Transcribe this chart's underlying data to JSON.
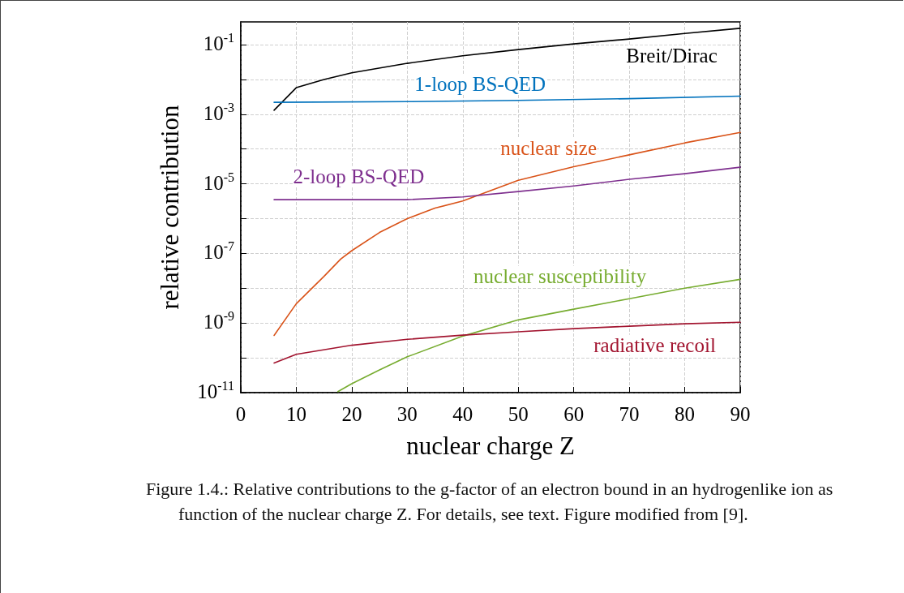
{
  "chart_data": {
    "type": "line",
    "xlabel": "nuclear charge Z",
    "ylabel": "relative contribution",
    "xlim": [
      0,
      90
    ],
    "xticks": [
      0,
      10,
      20,
      30,
      40,
      50,
      60,
      70,
      80,
      90
    ],
    "ylim": [
      1e-11,
      0.45
    ],
    "log": "y",
    "yticks": [
      {
        "value": 1e-11,
        "label": "10$^{-11}$"
      },
      {
        "value": 1e-10,
        "label": null
      },
      {
        "value": 1e-09,
        "label": "10$^{-9}$"
      },
      {
        "value": 1e-08,
        "label": null
      },
      {
        "value": 1e-07,
        "label": "10$^{-7}$"
      },
      {
        "value": 1e-06,
        "label": null
      },
      {
        "value": 1e-05,
        "label": "10$^{-5}$"
      },
      {
        "value": 0.0001,
        "label": null
      },
      {
        "value": 0.001,
        "label": "10$^{-3}$"
      },
      {
        "value": 0.01,
        "label": null
      },
      {
        "value": 0.1,
        "label": "10$^{-1}$"
      }
    ],
    "grid": true,
    "legend": false,
    "marker": "none",
    "line_style": "solid",
    "series": [
      {
        "name": "Breit/Dirac",
        "color": "#000000",
        "x": [
          6,
          10,
          15,
          20,
          30,
          40,
          50,
          60,
          70,
          80,
          90
        ],
        "values": [
          0.0013,
          0.0058,
          0.01,
          0.0155,
          0.029,
          0.048,
          0.072,
          0.105,
          0.145,
          0.21,
          0.295
        ]
      },
      {
        "name": "1-loop BS-QED",
        "color": "#0072bd",
        "x": [
          6,
          30,
          50,
          70,
          90
        ],
        "values": [
          0.0022,
          0.0023,
          0.0025,
          0.0028,
          0.0033
        ]
      },
      {
        "name": "nuclear size",
        "color": "#d95319",
        "x": [
          6,
          10,
          15,
          18,
          20,
          25,
          30,
          35,
          40,
          50,
          60,
          70,
          80,
          90
        ],
        "values": [
          4.4e-10,
          3.6e-09,
          2.2e-08,
          6.9e-08,
          1.2e-07,
          4e-07,
          1e-06,
          2e-06,
          3.2e-06,
          1.26e-05,
          3.1e-05,
          6.8e-05,
          0.00015,
          0.0003
        ]
      },
      {
        "name": "2-loop BS-QED",
        "color": "#7e2f8e",
        "x": [
          6,
          30,
          40,
          50,
          60,
          70,
          80,
          90
        ],
        "values": [
          3.5e-06,
          3.5e-06,
          4.2e-06,
          6e-06,
          8.7e-06,
          1.35e-05,
          1.95e-05,
          3e-05
        ]
      },
      {
        "name": "nuclear susceptibility",
        "color": "#77ac30",
        "x": [
          17.5,
          20,
          25,
          30,
          40,
          50,
          60,
          70,
          80,
          90
        ],
        "values": [
          1.07e-11,
          1.8e-11,
          4.5e-11,
          1.07e-10,
          4.2e-10,
          1.23e-09,
          2.5e-09,
          5e-09,
          1e-08,
          1.8e-08
        ]
      },
      {
        "name": "radiative recoil",
        "color": "#a2142f",
        "x": [
          6,
          10,
          20,
          30,
          40,
          50,
          60,
          70,
          80,
          90
        ],
        "values": [
          7.1e-11,
          1.26e-10,
          2.3e-10,
          3.4e-10,
          4.5e-10,
          5.6e-10,
          6.9e-10,
          8.1e-10,
          9.5e-10,
          1.05e-09
        ]
      }
    ],
    "annotations": [
      "Figure 1.4.: Relative contributions to the g-factor of an electron bound in an hydrogenlike ion as function of the nuclear charge Z. For details, see text. Figure modified from [9]."
    ]
  }
}
